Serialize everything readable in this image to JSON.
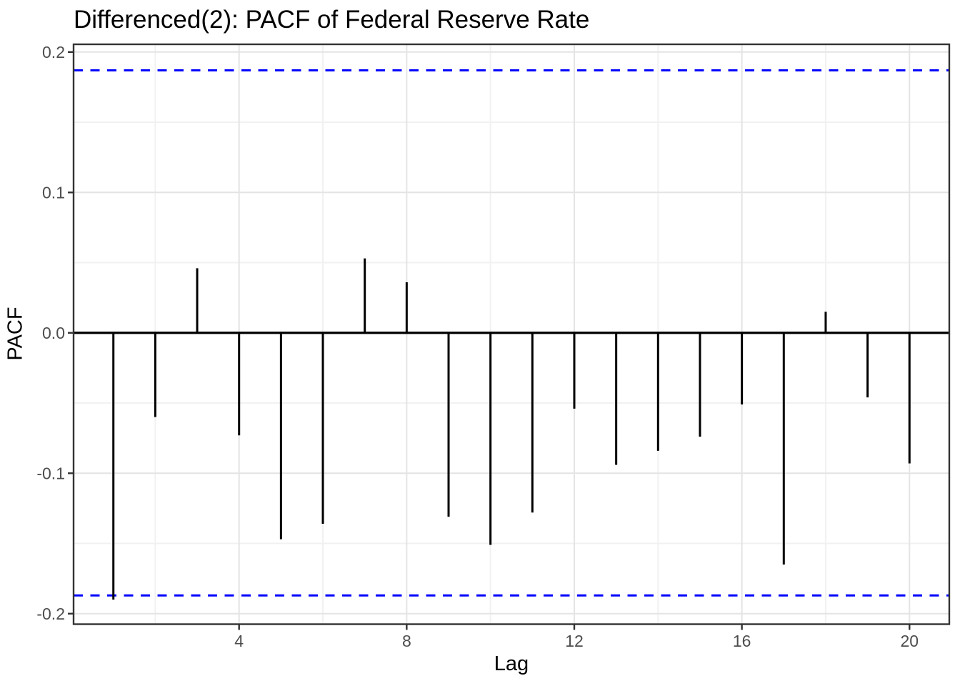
{
  "chart_data": {
    "type": "bar",
    "subtype": "pacf-lollipop",
    "title": "Differenced(2): PACF of Federal Reserve Rate",
    "xlabel": "Lag",
    "ylabel": "PACF",
    "x": [
      1,
      2,
      3,
      4,
      5,
      6,
      7,
      8,
      9,
      10,
      11,
      12,
      13,
      14,
      15,
      16,
      17,
      18,
      19,
      20
    ],
    "values": [
      -0.19,
      -0.06,
      0.046,
      -0.073,
      -0.147,
      -0.136,
      0.053,
      0.036,
      -0.131,
      -0.151,
      -0.128,
      -0.054,
      -0.094,
      -0.084,
      -0.074,
      -0.051,
      -0.165,
      0.015,
      -0.046,
      -0.093
    ],
    "confidence_bounds": {
      "upper": 0.187,
      "lower": -0.187,
      "style": "dashed"
    },
    "x_domain": [
      0.05,
      20.95
    ],
    "y_domain": [
      -0.2075,
      0.2055
    ],
    "x_ticks": [
      {
        "value": 4,
        "label": "4"
      },
      {
        "value": 8,
        "label": "8"
      },
      {
        "value": 12,
        "label": "12"
      },
      {
        "value": 16,
        "label": "16"
      },
      {
        "value": 20,
        "label": "20"
      }
    ],
    "x_minor_gridlines": [
      2,
      6,
      10,
      14,
      18
    ],
    "y_ticks": [
      {
        "value": 0.2,
        "label": "0.2"
      },
      {
        "value": 0.1,
        "label": "0.1"
      },
      {
        "value": 0.0,
        "label": "0.0"
      },
      {
        "value": -0.1,
        "label": "-0.1"
      },
      {
        "value": -0.2,
        "label": "-0.2"
      }
    ],
    "y_minor_gridlines": [
      0.15,
      0.05,
      -0.05,
      -0.15
    ],
    "grid": "on",
    "legend": "none",
    "colors": {
      "bar": "#000000",
      "zero_line": "#000000",
      "ci_line": "#0000FF",
      "grid_major": "#E4E4E4",
      "grid_minor": "#F1F1F1",
      "panel_border": "#333333",
      "tick_mark": "#333333",
      "tick_label": "#4D4D4D",
      "title": "#000000",
      "axis_title": "#000000",
      "background": "#FFFFFF"
    }
  }
}
